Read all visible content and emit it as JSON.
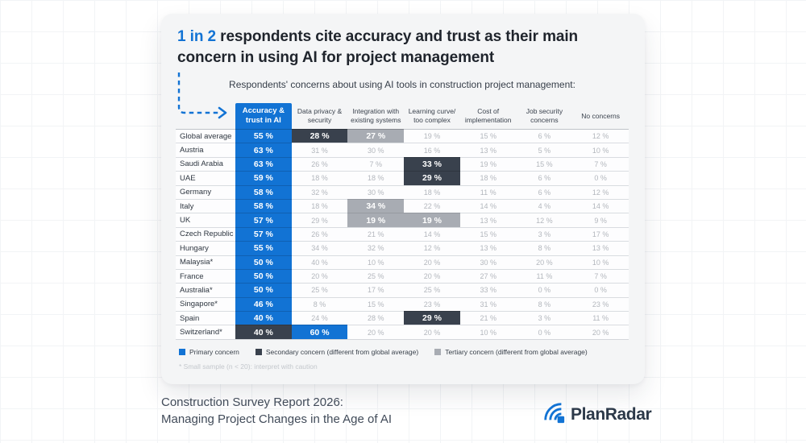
{
  "title": {
    "highlight": "1 in 2",
    "line1_rest": " respondents cite accuracy and trust as their main",
    "line2": "concern in using AI for project management"
  },
  "colors": {
    "primary_blue": "#1273d4",
    "secondary_dark": "#39414d",
    "tertiary_gray": "#a8acb3"
  },
  "chart_data": {
    "type": "table",
    "title": "Respondents' concerns about using AI tools in construction project management:",
    "columns": [
      "Accuracy &\ntrust in AI",
      "Data privacy &\nsecurity",
      "Integration with\nexisting systems",
      "Learning curve/\ntoo complex",
      "Cost of\nimplementation",
      "Job security\nconcerns",
      "No concerns"
    ],
    "rows": [
      {
        "label": "Global average",
        "cells": [
          [
            "55 %",
            "p"
          ],
          [
            "28 %",
            "s"
          ],
          [
            "27 %",
            "t"
          ],
          [
            "19 %",
            ""
          ],
          [
            "15 %",
            ""
          ],
          [
            "6 %",
            ""
          ],
          [
            "12 %",
            ""
          ]
        ]
      },
      {
        "label": "Austria",
        "cells": [
          [
            "63 %",
            "p"
          ],
          [
            "31 %",
            ""
          ],
          [
            "30 %",
            ""
          ],
          [
            "16 %",
            ""
          ],
          [
            "13 %",
            ""
          ],
          [
            "5 %",
            ""
          ],
          [
            "10 %",
            ""
          ]
        ]
      },
      {
        "label": "Saudi Arabia",
        "cells": [
          [
            "63 %",
            "p"
          ],
          [
            "26 %",
            ""
          ],
          [
            "7 %",
            ""
          ],
          [
            "33 %",
            "s"
          ],
          [
            "19 %",
            ""
          ],
          [
            "15 %",
            ""
          ],
          [
            "7 %",
            ""
          ]
        ]
      },
      {
        "label": "UAE",
        "cells": [
          [
            "59 %",
            "p"
          ],
          [
            "18 %",
            ""
          ],
          [
            "18 %",
            ""
          ],
          [
            "29 %",
            "s"
          ],
          [
            "18 %",
            ""
          ],
          [
            "6 %",
            ""
          ],
          [
            "0 %",
            ""
          ]
        ]
      },
      {
        "label": "Germany",
        "cells": [
          [
            "58 %",
            "p"
          ],
          [
            "32 %",
            ""
          ],
          [
            "30 %",
            ""
          ],
          [
            "18 %",
            ""
          ],
          [
            "11 %",
            ""
          ],
          [
            "6 %",
            ""
          ],
          [
            "12 %",
            ""
          ]
        ]
      },
      {
        "label": "Italy",
        "cells": [
          [
            "58 %",
            "p"
          ],
          [
            "18 %",
            ""
          ],
          [
            "34 %",
            "t"
          ],
          [
            "22 %",
            ""
          ],
          [
            "14 %",
            ""
          ],
          [
            "4 %",
            ""
          ],
          [
            "14 %",
            ""
          ]
        ]
      },
      {
        "label": "UK",
        "cells": [
          [
            "57 %",
            "p"
          ],
          [
            "29 %",
            ""
          ],
          [
            "19 %",
            "t"
          ],
          [
            "19 %",
            "t"
          ],
          [
            "13 %",
            ""
          ],
          [
            "12 %",
            ""
          ],
          [
            "9 %",
            ""
          ]
        ]
      },
      {
        "label": "Czech Republic",
        "cells": [
          [
            "57 %",
            "p"
          ],
          [
            "26 %",
            ""
          ],
          [
            "21 %",
            ""
          ],
          [
            "14 %",
            ""
          ],
          [
            "15 %",
            ""
          ],
          [
            "3 %",
            ""
          ],
          [
            "17 %",
            ""
          ]
        ]
      },
      {
        "label": "Hungary",
        "cells": [
          [
            "55 %",
            "p"
          ],
          [
            "34 %",
            ""
          ],
          [
            "32 %",
            ""
          ],
          [
            "12 %",
            ""
          ],
          [
            "13 %",
            ""
          ],
          [
            "8 %",
            ""
          ],
          [
            "13 %",
            ""
          ]
        ]
      },
      {
        "label": "Malaysia*",
        "cells": [
          [
            "50 %",
            "p"
          ],
          [
            "40 %",
            ""
          ],
          [
            "10 %",
            ""
          ],
          [
            "20 %",
            ""
          ],
          [
            "30 %",
            ""
          ],
          [
            "20 %",
            ""
          ],
          [
            "10 %",
            ""
          ]
        ]
      },
      {
        "label": "France",
        "cells": [
          [
            "50 %",
            "p"
          ],
          [
            "20 %",
            ""
          ],
          [
            "25 %",
            ""
          ],
          [
            "20 %",
            ""
          ],
          [
            "27 %",
            ""
          ],
          [
            "11 %",
            ""
          ],
          [
            "7 %",
            ""
          ]
        ]
      },
      {
        "label": "Australia*",
        "cells": [
          [
            "50 %",
            "p"
          ],
          [
            "25 %",
            ""
          ],
          [
            "17 %",
            ""
          ],
          [
            "25 %",
            ""
          ],
          [
            "33 %",
            ""
          ],
          [
            "0 %",
            ""
          ],
          [
            "0 %",
            ""
          ]
        ]
      },
      {
        "label": "Singapore*",
        "cells": [
          [
            "46 %",
            "p"
          ],
          [
            "8 %",
            ""
          ],
          [
            "15 %",
            ""
          ],
          [
            "23 %",
            ""
          ],
          [
            "31 %",
            ""
          ],
          [
            "8 %",
            ""
          ],
          [
            "23 %",
            ""
          ]
        ]
      },
      {
        "label": "Spain",
        "cells": [
          [
            "40 %",
            "p"
          ],
          [
            "24 %",
            ""
          ],
          [
            "28 %",
            ""
          ],
          [
            "29 %",
            "s"
          ],
          [
            "21 %",
            ""
          ],
          [
            "3 %",
            ""
          ],
          [
            "11 %",
            ""
          ]
        ]
      },
      {
        "label": "Switzerland*",
        "cells": [
          [
            "40 %",
            "s"
          ],
          [
            "60 %",
            "p"
          ],
          [
            "20 %",
            ""
          ],
          [
            "20 %",
            ""
          ],
          [
            "10 %",
            ""
          ],
          [
            "0 %",
            ""
          ],
          [
            "20 %",
            ""
          ]
        ]
      }
    ],
    "legend": [
      {
        "type": "p",
        "label": "Primary concern"
      },
      {
        "type": "s",
        "label": "Secondary concern (different from global average)"
      },
      {
        "type": "t",
        "label": "Tertiary concern (different from global average)"
      }
    ],
    "note": "* Small sample (n < 20): interpret with caution"
  },
  "footer": {
    "line1": "Construction Survey Report 2026:",
    "line2": "Managing Project Changes in the Age of AI",
    "brand": "PlanRadar"
  }
}
